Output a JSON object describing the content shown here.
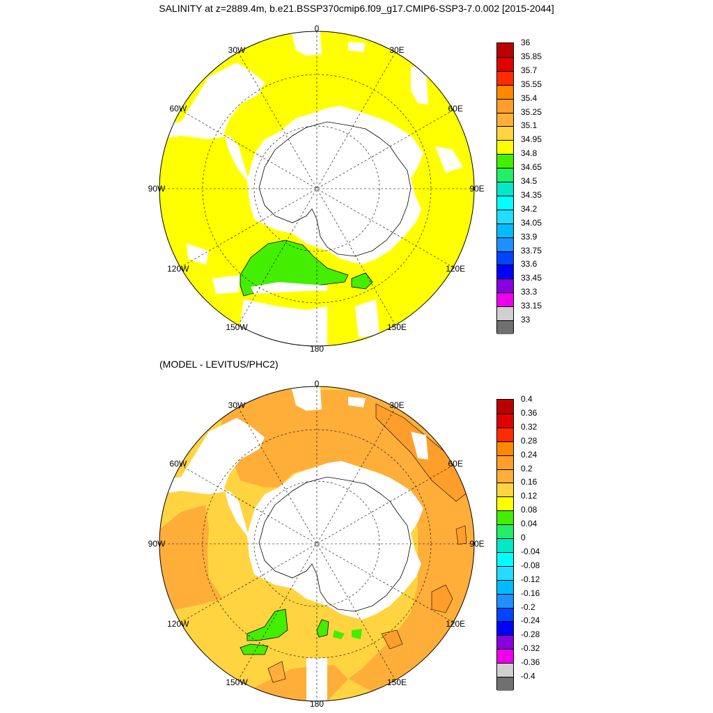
{
  "title": "SALINITY at z=2889.4m, b.e21.BSSP370cmip6.f09_g17.CMIP6-SSP3-7.0.002 [2015-2044]",
  "subtitle": "(MODEL - LEVITUS/PHC2)",
  "longitude_labels": [
    "0",
    "30E",
    "60E",
    "90E",
    "120E",
    "150E",
    "180",
    "150W",
    "120W",
    "90W",
    "60W",
    "30W"
  ],
  "chart_data": [
    {
      "type": "heatmap",
      "projection": "south-polar-stereographic",
      "variable": "SALINITY",
      "colorbar_labels": [
        "36",
        "35.85",
        "35.7",
        "35.55",
        "35.4",
        "35.25",
        "35.1",
        "34.95",
        "34.8",
        "34.65",
        "34.5",
        "34.35",
        "34.2",
        "34.05",
        "33.9",
        "33.75",
        "33.6",
        "33.45",
        "33.3",
        "33.15",
        "33"
      ],
      "colors": [
        "#bb0000",
        "#e00000",
        "#ff2a00",
        "#ff8800",
        "#ff9e2a",
        "#ffae3a",
        "#ffd440",
        "#ffff00",
        "#44ee00",
        "#22ee66",
        "#00e8c8",
        "#00ffff",
        "#22ddff",
        "#00bbff",
        "#1e90ff",
        "#0044ff",
        "#0000ff",
        "#8800dd",
        "#ee00ee",
        "#d0d0d0",
        "#707070"
      ],
      "dominant_value_range": [
        34.8,
        34.95
      ],
      "regions": [
        {
          "range": [
            34.8,
            34.95
          ],
          "color": "#ffff00"
        },
        {
          "range": [
            34.65,
            34.8
          ],
          "color": "#44ee00"
        }
      ]
    },
    {
      "type": "heatmap",
      "projection": "south-polar-stereographic",
      "variable": "SALINITY difference",
      "colorbar_labels": [
        "0.4",
        "0.36",
        "0.32",
        "0.28",
        "0.24",
        "0.2",
        "0.16",
        "0.12",
        "0.08",
        "0.04",
        "0",
        "-0.04",
        "-0.08",
        "-0.12",
        "-0.16",
        "-0.2",
        "-0.24",
        "-0.28",
        "-0.32",
        "-0.36",
        "-0.4"
      ],
      "colors": [
        "#bb0000",
        "#e00000",
        "#ff2a00",
        "#ff8800",
        "#ff9e2a",
        "#ffae3a",
        "#ffd440",
        "#ffff00",
        "#44ee00",
        "#22ee66",
        "#00e8c8",
        "#00ffff",
        "#22ddff",
        "#00bbff",
        "#1e90ff",
        "#0044ff",
        "#0000ff",
        "#8800dd",
        "#ee00ee",
        "#d0d0d0",
        "#707070"
      ],
      "regions": [
        {
          "range": [
            0.16,
            0.2
          ],
          "color": "#ffae3a"
        },
        {
          "range": [
            0.12,
            0.16
          ],
          "color": "#ffd440"
        },
        {
          "range": [
            0.2,
            0.24
          ],
          "color": "#ff9e2a"
        },
        {
          "range": [
            0.04,
            0.08
          ],
          "color": "#44ee00"
        }
      ]
    }
  ]
}
